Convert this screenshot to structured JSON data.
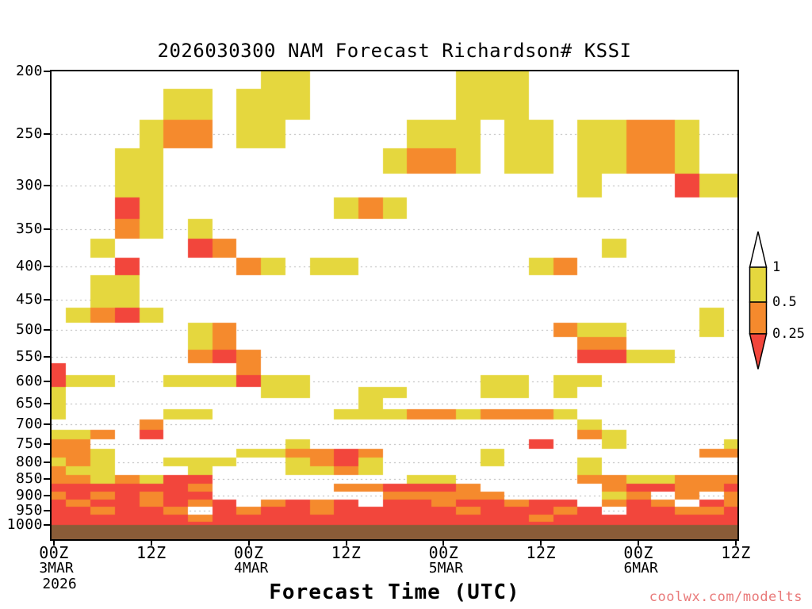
{
  "title": "2026030300 NAM Forecast Richardson# KSSI",
  "watermark": "coolwx.com/modelts",
  "watermark_color": "#e97a7a",
  "x_axis": {
    "label": "Forecast Time (UTC)",
    "tick_hours": [
      0,
      12,
      24,
      36,
      48,
      60,
      72,
      84
    ],
    "ticks": [
      {
        "time": "00Z",
        "date": "3MAR",
        "year": "2026"
      },
      {
        "time": "12Z"
      },
      {
        "time": "00Z",
        "date": "4MAR"
      },
      {
        "time": "12Z"
      },
      {
        "time": "00Z",
        "date": "5MAR"
      },
      {
        "time": "12Z"
      },
      {
        "time": "00Z",
        "date": "6MAR"
      },
      {
        "time": "12Z"
      }
    ]
  },
  "y_axis": {
    "ticks": [
      200,
      250,
      300,
      350,
      400,
      450,
      500,
      550,
      600,
      650,
      700,
      750,
      800,
      850,
      900,
      950,
      1000
    ]
  },
  "colorbar": {
    "labels": [
      "1",
      "0.5",
      "0.25"
    ],
    "top_color": "#ffffff"
  },
  "chart_data": {
    "type": "heatmap",
    "title": "2026030300 NAM Forecast Richardson# KSSI",
    "xlabel": "Forecast Time (UTC)",
    "ylabel": "",
    "x_tick_labels": [
      "00Z 3MAR 2026",
      "12Z",
      "00Z 4MAR",
      "12Z",
      "00Z 5MAR",
      "12Z",
      "00Z 6MAR",
      "12Z"
    ],
    "y_tick_labels": [
      200,
      250,
      300,
      350,
      400,
      450,
      500,
      550,
      600,
      650,
      700,
      750,
      800,
      850,
      900,
      950,
      1000
    ],
    "x_hours": [
      0,
      3,
      6,
      9,
      12,
      15,
      18,
      21,
      24,
      27,
      30,
      33,
      36,
      39,
      42,
      45,
      48,
      51,
      54,
      57,
      60,
      63,
      66,
      69,
      72,
      75,
      78,
      81,
      84
    ],
    "pressure_levels": [
      200,
      225,
      250,
      275,
      300,
      325,
      350,
      375,
      400,
      425,
      450,
      475,
      500,
      525,
      550,
      575,
      600,
      625,
      650,
      675,
      700,
      725,
      750,
      775,
      800,
      825,
      850,
      875,
      900,
      925,
      950,
      975,
      1000
    ],
    "value_legend": {
      ".": "Richardson number > 1 (unshaded)",
      "y": "0.5 to 1",
      "o": "0.25 to 0.5",
      "r": "< 0.25"
    },
    "colorbar_thresholds": [
      1,
      0.5,
      0.25
    ],
    "colors": {
      "y": "#e5d73e",
      "o": "#f58a2d",
      "r": "#f2463c"
    },
    "ground_color": "#8a5c38",
    "gridline_color": "#b0b0b0",
    "grid_rows": [
      ".........yy......yyy.........",
      ".....yy.yyy......yyy.........",
      "....yoo.yy.....yyy.yy.yyooy..",
      "...yy.........yooy.yy.yyooy..",
      "...yy.................y...ryy",
      "...ry.......yoy..............",
      "...oy.y......................",
      "..y...ro...............y.....",
      "...r....oy.yy.......yo.......",
      "..yy.........................",
      "..yy.........................",
      ".yory......................y.",
      "......yo.............oyy...y.",
      "......yo..............oo.....",
      "......oro.............rryy...",
      "r.......o....................",
      "ryy..yyyryy.......yy.yy......",
      "y........yy..yy...yy.y.......",
      "y............y...............",
      "y....yy.....yyyooyoooy.......",
      "....o.................y......",
      "yyo.r.................oy.....",
      "oo........y.........r..y....y",
      "ooy.....yyooro....y........oo",
      "yoy..yyy..yory....y...y......",
      "oyy...y...yyoy........y......",
      "ooyoyrr........yy.....ooyyooo",
      "rrrrrro.....oorrro.....orroor",
      "orororr.......ooooo....yo.o.o",
      "rorroror.oror.rrorrorr.oro.ro",
      "rrorro.rorrorrrrrorrror.rroor",
      "rrrrrrorrrrrrrrrrrrrorrrrrrrr",
      "rrrrrrrrrrrrrrrrrrrrrrrrrrrrr"
    ]
  }
}
